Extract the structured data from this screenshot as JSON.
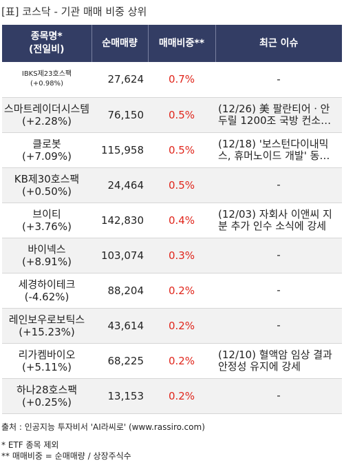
{
  "title": "[표] 코스닥 - 기관 매매 비중 상위",
  "columns": {
    "name": "종목명*\n(전일비)",
    "volume": "순매매량",
    "ratio": "매매비중**",
    "issue": "최근 이슈"
  },
  "rows": [
    {
      "name": "IBKS제23호스팩",
      "change": "(+0.98%)",
      "volume": "27,624",
      "ratio": "0.7%",
      "issue": "-"
    },
    {
      "name": "스마트레이더시스템",
      "change": "(+2.28%)",
      "volume": "76,150",
      "ratio": "0.5%",
      "issue": "(12/26) 美 팔란티어ㆍ안두릴 1200조 국방 컨소시...."
    },
    {
      "name": "클로봇",
      "change": "(+7.09%)",
      "volume": "115,958",
      "ratio": "0.5%",
      "issue": "(12/18) '보스턴다이내믹스, 휴머노이드 개발' 동맹......"
    },
    {
      "name": "KB제30호스팩",
      "change": "(+0.50%)",
      "volume": "24,464",
      "ratio": "0.5%",
      "issue": "-"
    },
    {
      "name": "브이티",
      "change": "(+3.76%)",
      "volume": "142,830",
      "ratio": "0.4%",
      "issue": "(12/03) 자회사 이앤씨 지분 추가 인수 소식에 강세"
    },
    {
      "name": "바이넥스",
      "change": "(+8.91%)",
      "volume": "103,074",
      "ratio": "0.3%",
      "issue": "-"
    },
    {
      "name": "세경하이테크",
      "change": "(-4.62%)",
      "volume": "88,204",
      "ratio": "0.2%",
      "issue": "-"
    },
    {
      "name": "레인보우로보틱스",
      "change": "(+15.23%)",
      "volume": "43,614",
      "ratio": "0.2%",
      "issue": "-"
    },
    {
      "name": "리가켐바이오",
      "change": "(+5.11%)",
      "volume": "68,225",
      "ratio": "0.2%",
      "issue": "(12/10) 혈액암 임상 결과 안정성 유지에 강세"
    },
    {
      "name": "하나28호스팩",
      "change": "(+0.25%)",
      "volume": "13,153",
      "ratio": "0.2%",
      "issue": "-"
    }
  ],
  "source": "출처 : 인공지능 투자비서 'AI라씨로' (www.rassiro.com)",
  "notes": [
    "* ETF 종목 제외",
    "** 매매비중 = 순매매량 / 상장주식수"
  ]
}
